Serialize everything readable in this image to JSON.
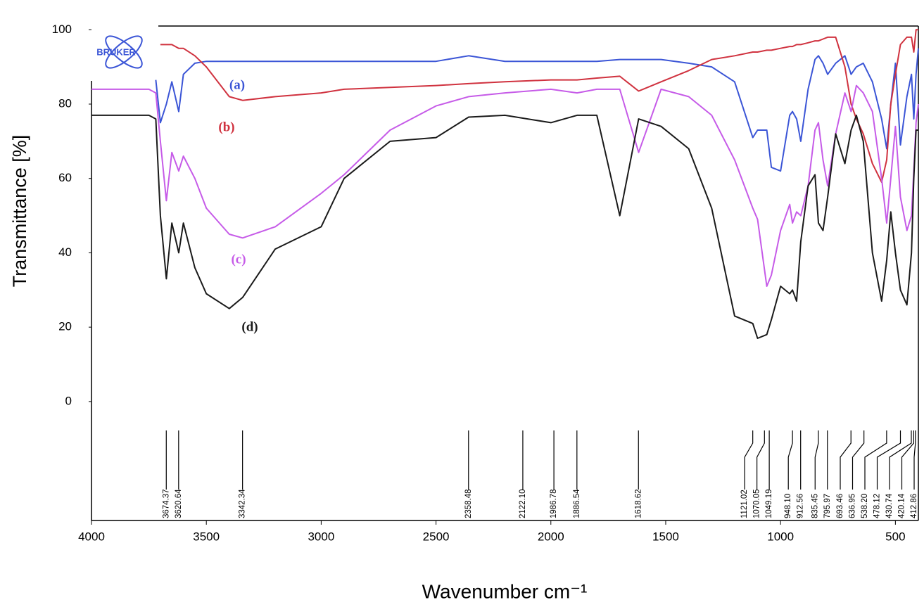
{
  "logo": "BRUKER",
  "chart_data": {
    "type": "line",
    "xlabel": "Wavenumber cm⁻¹",
    "ylabel": "Transmittance [%]",
    "xlim": [
      4000,
      400
    ],
    "ylim": [
      -32,
      101
    ],
    "xticks": [
      4000,
      3500,
      3000,
      2500,
      2000,
      1500,
      1000,
      500
    ],
    "yticks": [
      0,
      20,
      40,
      60,
      80,
      100
    ],
    "grid": false,
    "x": [
      4000,
      3750,
      3720,
      3700,
      3674,
      3650,
      3620,
      3600,
      3550,
      3500,
      3400,
      3342,
      3200,
      3000,
      2900,
      2700,
      2500,
      2358,
      2200,
      2000,
      1886,
      1800,
      1700,
      1618,
      1520,
      1400,
      1300,
      1200,
      1121,
      1100,
      1060,
      1040,
      1000,
      960,
      948,
      930,
      912,
      880,
      850,
      835,
      815,
      795,
      760,
      720,
      693,
      670,
      640,
      600,
      560,
      538,
      520,
      500,
      478,
      450,
      430,
      420,
      410,
      400
    ],
    "series": [
      {
        "name": "(a)",
        "color": "#3b55d6",
        "values": [
          null,
          null,
          86.5,
          75,
          80,
          86,
          78,
          88,
          91,
          91.5,
          91.5,
          91.5,
          91.5,
          91.5,
          91.5,
          91.5,
          91.5,
          93,
          91.5,
          91.5,
          91.5,
          91.5,
          92,
          92,
          92,
          91,
          90,
          86,
          71,
          73,
          73,
          63,
          62,
          77,
          78,
          76,
          70,
          84,
          92,
          93,
          91,
          88,
          91,
          93,
          88,
          90,
          91,
          86,
          76,
          68,
          80,
          91,
          69,
          82,
          88,
          76,
          88,
          95
        ]
      },
      {
        "name": "(b)",
        "color": "#d0323f",
        "values": [
          null,
          null,
          null,
          96,
          96,
          96,
          95,
          95,
          93,
          90,
          82,
          81,
          82,
          83,
          84,
          84.5,
          85,
          85.5,
          86,
          86.5,
          86.5,
          87,
          87.5,
          83.5,
          86,
          89,
          92,
          93,
          94,
          94,
          94.5,
          94.5,
          95,
          95.5,
          95.5,
          96,
          96,
          96.5,
          97,
          97,
          97.5,
          98,
          98,
          90,
          80,
          76,
          72,
          64,
          59,
          65,
          80,
          88,
          96,
          98,
          98,
          94,
          100,
          100
        ]
      },
      {
        "name": "(c)",
        "color": "#c65be8",
        "values": [
          84,
          84,
          83,
          70,
          54,
          67,
          62,
          66,
          60,
          52,
          45,
          44,
          47,
          56,
          61,
          73,
          79.5,
          82,
          83,
          84,
          83,
          84,
          84,
          67,
          84,
          82,
          77,
          65,
          52,
          49,
          31,
          34,
          46,
          53,
          48,
          51,
          50,
          58,
          73,
          75,
          65,
          58,
          72,
          83,
          78,
          85,
          83,
          78,
          60,
          48,
          60,
          74,
          55,
          46,
          50,
          62,
          75,
          80
        ]
      },
      {
        "name": "(d)",
        "color": "#1a1a1a",
        "values": [
          77,
          77,
          76,
          50,
          33,
          48,
          40,
          48,
          36,
          29,
          25,
          28,
          41,
          47,
          60,
          70,
          71,
          76.5,
          77,
          75,
          77,
          77,
          50,
          76,
          74,
          68,
          52,
          23,
          21,
          17,
          18,
          22,
          31,
          29,
          30,
          27,
          43,
          58,
          61,
          48,
          46,
          55,
          72,
          64,
          73,
          77,
          70,
          40,
          27,
          38,
          51,
          40,
          30,
          26,
          40,
          60,
          73,
          73
        ]
      }
    ],
    "peaks": [
      3674.37,
      3620.64,
      3342.34,
      2358.48,
      {
        "value": 2122.1,
        "label": "2122.10"
      },
      1986.78,
      1886.54,
      1618.62,
      1121.02,
      1070.05,
      1049.19,
      {
        "value": 948.1,
        "label": "948.10"
      },
      912.56,
      835.45,
      795.97,
      693.46,
      636.95,
      {
        "value": 538.2,
        "label": "538.20"
      },
      478.12,
      430.74,
      420.14,
      412.86
    ]
  }
}
